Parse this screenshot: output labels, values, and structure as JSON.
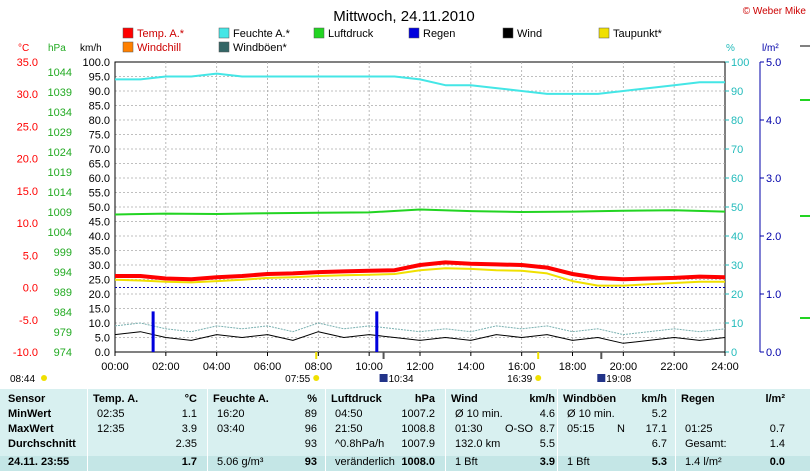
{
  "header": {
    "title": "Mittwoch, 24.11.2010",
    "copyright": "© Weber Mike"
  },
  "colors": {
    "temp": "#ff0000",
    "feuchte": "#44e6e6",
    "luftdruck": "#22d422",
    "regen": "#0000dd",
    "wind": "#000000",
    "taupunkt": "#f0e000",
    "windchill": "#ff8000",
    "windboen": "#336666"
  },
  "legend": [
    {
      "label": "Temp. A.*",
      "color": "#ff0000"
    },
    {
      "label": "Feuchte A.*",
      "color": "#44e6e6"
    },
    {
      "label": "Luftdruck",
      "color": "#22d422"
    },
    {
      "label": "Regen",
      "color": "#0000dd"
    },
    {
      "label": "Wind",
      "color": "#000000"
    },
    {
      "label": "Taupunkt*",
      "color": "#f0e000"
    },
    {
      "label": "Windchill",
      "color": "#ff8000"
    },
    {
      "label": "Windböen*",
      "color": "#336666"
    }
  ],
  "chart_data": {
    "type": "line",
    "x_ticks": [
      "00:00",
      "02:00",
      "04:00",
      "06:00",
      "08:00",
      "10:00",
      "12:00",
      "14:00",
      "16:00",
      "18:00",
      "20:00",
      "22:00",
      "24:00"
    ],
    "axes": {
      "temp": {
        "unit": "°C",
        "ticks": [
          "35.0",
          "30.0",
          "25.0",
          "20.0",
          "15.0",
          "10.0",
          "5.0",
          "0.0",
          "-5.0",
          "-10.0"
        ],
        "range": [
          -10,
          35
        ]
      },
      "pressure": {
        "unit": "hPa",
        "ticks": [
          "1044",
          "1039",
          "1034",
          "1029",
          "1024",
          "1019",
          "1014",
          "1009",
          "1004",
          "999",
          "994",
          "989",
          "984",
          "979",
          "974"
        ],
        "range": [
          974,
          1044
        ]
      },
      "wind": {
        "unit": "km/h",
        "ticks": [
          "100.0",
          "95.0",
          "90.0",
          "85.0",
          "80.0",
          "75.0",
          "70.0",
          "65.0",
          "60.0",
          "55.0",
          "50.0",
          "45.0",
          "40.0",
          "35.0",
          "30.0",
          "25.0",
          "20.0",
          "15.0",
          "10.0",
          "5.0",
          "0.0"
        ],
        "range": [
          0,
          100
        ]
      },
      "humidity": {
        "unit": "%",
        "ticks": [
          "100",
          "90",
          "80",
          "70",
          "60",
          "50",
          "40",
          "30",
          "20",
          "10",
          "0"
        ],
        "range": [
          0,
          100
        ]
      },
      "rain": {
        "unit": "l/m²",
        "ticks": [
          "5.0",
          "4.0",
          "3.0",
          "2.0",
          "1.0",
          "0.0"
        ],
        "range": [
          0,
          5
        ]
      }
    },
    "series": [
      {
        "name": "Temp. A.*",
        "axis": "temp",
        "x": [
          0,
          1,
          2,
          3,
          4,
          5,
          6,
          7,
          8,
          9,
          10,
          11,
          12,
          13,
          14,
          15,
          16,
          17,
          18,
          19,
          20,
          21,
          22,
          23,
          24
        ],
        "values": [
          1.8,
          1.8,
          1.4,
          1.3,
          1.6,
          1.8,
          2.1,
          2.2,
          2.4,
          2.5,
          2.6,
          2.7,
          3.5,
          3.9,
          3.7,
          3.6,
          3.5,
          3.1,
          2.1,
          1.5,
          1.3,
          1.4,
          1.5,
          1.7,
          1.6
        ]
      },
      {
        "name": "Taupunkt*",
        "axis": "temp",
        "x": [
          0,
          1,
          2,
          3,
          4,
          5,
          6,
          7,
          8,
          9,
          10,
          11,
          12,
          13,
          14,
          15,
          16,
          17,
          18,
          19,
          20,
          21,
          22,
          23,
          24
        ],
        "values": [
          1.2,
          1.1,
          0.9,
          0.8,
          1.0,
          1.2,
          1.5,
          1.6,
          1.8,
          1.9,
          2.0,
          2.1,
          2.7,
          3.0,
          2.9,
          2.7,
          2.6,
          2.2,
          1.0,
          0.3,
          0.3,
          0.5,
          0.7,
          0.9,
          0.9
        ]
      },
      {
        "name": "Feuchte A.*",
        "axis": "humidity",
        "x": [
          0,
          1,
          2,
          3,
          4,
          5,
          6,
          7,
          8,
          9,
          10,
          11,
          12,
          13,
          14,
          15,
          16,
          17,
          18,
          19,
          20,
          21,
          22,
          23,
          24
        ],
        "values": [
          94,
          94,
          95,
          95,
          96,
          95,
          95,
          95,
          95,
          95,
          95,
          95,
          94,
          92,
          92,
          91,
          90,
          89,
          89,
          89,
          90,
          91,
          92,
          93,
          93
        ]
      },
      {
        "name": "Luftdruck",
        "axis": "pressure",
        "x": [
          0,
          2,
          4,
          6,
          8,
          10,
          12,
          14,
          16,
          18,
          20,
          22,
          24
        ],
        "values": [
          1007.2,
          1007.4,
          1007.3,
          1007.5,
          1007.6,
          1007.7,
          1008.4,
          1008.0,
          1007.8,
          1007.9,
          1008.1,
          1008.2,
          1007.9
        ]
      },
      {
        "name": "Wind",
        "axis": "wind",
        "x": [
          0,
          1,
          2,
          3,
          4,
          5,
          6,
          7,
          8,
          9,
          10,
          11,
          12,
          13,
          14,
          15,
          16,
          17,
          18,
          19,
          20,
          21,
          22,
          23,
          24
        ],
        "values": [
          6,
          7,
          5,
          4,
          6,
          5,
          6,
          4,
          7,
          5,
          6,
          5,
          4,
          5,
          4,
          6,
          5,
          6,
          4,
          5,
          3,
          4,
          5,
          4,
          5
        ]
      },
      {
        "name": "Windböen*",
        "axis": "wind",
        "x": [
          0,
          1,
          2,
          3,
          4,
          5,
          6,
          7,
          8,
          9,
          10,
          11,
          12,
          13,
          14,
          15,
          16,
          17,
          18,
          19,
          20,
          21,
          22,
          23,
          24
        ],
        "values": [
          9,
          10,
          8,
          7,
          9,
          8,
          9,
          7,
          10,
          8,
          9,
          8,
          7,
          8,
          7,
          9,
          8,
          9,
          7,
          8,
          6,
          7,
          8,
          7,
          8
        ]
      },
      {
        "name": "Regen",
        "axis": "rain",
        "type": "bar",
        "x": [
          1.5,
          10.3
        ],
        "values": [
          0.7,
          0.7
        ]
      }
    ],
    "reference_line": {
      "axis": "temp",
      "value": 0.0
    }
  },
  "sun": {
    "sunrise": "07:55",
    "sunset": "16:39",
    "moonrise": "10:34",
    "moonset": "19:08",
    "start_time": "08:44"
  },
  "stats": {
    "headers": [
      "Sensor",
      "Temp. A.",
      "°C",
      "Feuchte A.",
      "%",
      "Luftdruck",
      "hPa",
      "Wind",
      "km/h",
      "Windböen",
      "km/h",
      "Regen",
      "l/m²"
    ],
    "rows": [
      {
        "label": "MinWert",
        "temp_t": "02:35",
        "temp_v": "1.1",
        "hum_t": "16:20",
        "hum_v": "89",
        "p_t": "04:50",
        "p_v": "1007.2",
        "w_t": "Ø 10 min.",
        "w_v": "4.6",
        "g_t": "Ø 10 min.",
        "g_v": "5.2",
        "r_t": "",
        "r_v": ""
      },
      {
        "label": "MaxWert",
        "temp_t": "12:35",
        "temp_v": "3.9",
        "hum_t": "03:40",
        "hum_v": "96",
        "p_t": "21:50",
        "p_v": "1008.8",
        "w_t": "01:30",
        "w_m": "O-SO",
        "w_v": "8.7",
        "g_t": "05:15",
        "g_m": "N",
        "g_v": "17.1",
        "r_t": "01:25",
        "r_v": "0.7"
      },
      {
        "label": "Durchschnitt",
        "temp_t": "",
        "temp_v": "2.35",
        "hum_t": "",
        "hum_v": "93",
        "p_t": "^0.8hPa/h",
        "p_v": "1007.9",
        "w_t": "132.0 km",
        "w_v": "5.5",
        "g_t": "",
        "g_v": "6.7",
        "r_t": "Gesamt:",
        "r_v": "1.4"
      },
      {
        "label": "24.11. 23:55",
        "temp_t": "",
        "temp_v": "1.7",
        "hum_t": "5.06 g/m³",
        "hum_v": "93",
        "p_t": "veränderlich",
        "p_v": "1008.0",
        "w_t": "1 Bft",
        "w_v": "3.9",
        "g_t": "1 Bft",
        "g_v": "5.3",
        "r_t": "1.4 l/m²",
        "r_v": "0.0"
      }
    ]
  }
}
